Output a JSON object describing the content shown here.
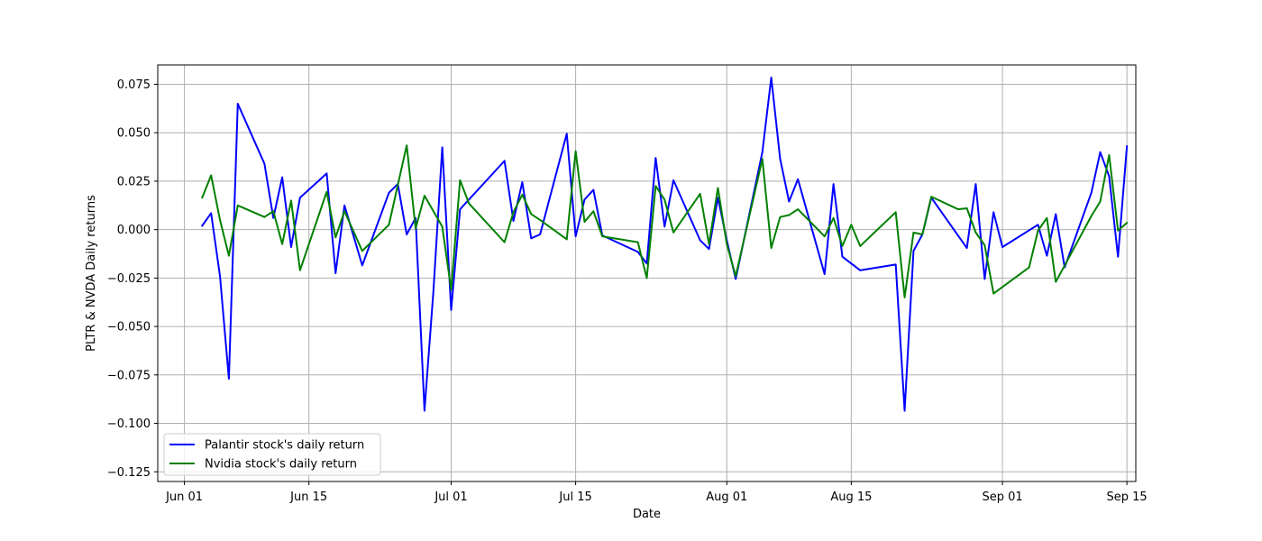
{
  "chart_data": {
    "type": "line",
    "title": "",
    "xlabel": "Date",
    "ylabel": "PLTR & NVDA Daily returns",
    "year": 2024,
    "xlim": [
      "2024-05-29",
      "2024-09-16"
    ],
    "ylim": [
      -0.13,
      0.085
    ],
    "x_ticks": [
      {
        "date": "2024-06-01",
        "label": "Jun 01"
      },
      {
        "date": "2024-06-15",
        "label": "Jun 15"
      },
      {
        "date": "2024-07-01",
        "label": "Jul 01"
      },
      {
        "date": "2024-07-15",
        "label": "Jul 15"
      },
      {
        "date": "2024-08-01",
        "label": "Aug 01"
      },
      {
        "date": "2024-08-15",
        "label": "Aug 15"
      },
      {
        "date": "2024-09-01",
        "label": "Sep 01"
      },
      {
        "date": "2024-09-15",
        "label": "Sep 15"
      }
    ],
    "y_ticks": [
      {
        "value": 0.075,
        "label": "0.075"
      },
      {
        "value": 0.05,
        "label": "0.050"
      },
      {
        "value": 0.025,
        "label": "0.025"
      },
      {
        "value": 0.0,
        "label": "0.000"
      },
      {
        "value": -0.025,
        "label": "−0.025"
      },
      {
        "value": -0.05,
        "label": "−0.050"
      },
      {
        "value": -0.075,
        "label": "−0.075"
      },
      {
        "value": -0.1,
        "label": "−0.100"
      },
      {
        "value": -0.125,
        "label": "−0.125"
      }
    ],
    "grid": true,
    "legend_position": "lower-left",
    "series": [
      {
        "name": "Palantir stock's daily return",
        "color": "#0000ff",
        "points": [
          [
            "2024-06-03",
            0.002
          ],
          [
            "2024-06-04",
            0.0085
          ],
          [
            "2024-06-05",
            -0.024
          ],
          [
            "2024-06-06",
            -0.077
          ],
          [
            "2024-06-07",
            0.065
          ],
          [
            "2024-06-10",
            0.034
          ],
          [
            "2024-06-11",
            0.006
          ],
          [
            "2024-06-12",
            0.027
          ],
          [
            "2024-06-13",
            -0.009
          ],
          [
            "2024-06-14",
            0.0165
          ],
          [
            "2024-06-17",
            0.029
          ],
          [
            "2024-06-18",
            -0.0225
          ],
          [
            "2024-06-19",
            0.0125
          ],
          [
            "2024-06-21",
            -0.0185
          ],
          [
            "2024-06-24",
            0.019
          ],
          [
            "2024-06-25",
            0.0235
          ],
          [
            "2024-06-26",
            -0.0025
          ],
          [
            "2024-06-27",
            0.006
          ],
          [
            "2024-06-28",
            -0.0935
          ],
          [
            "2024-06-29",
            -0.032
          ],
          [
            "2024-06-30",
            0.0425
          ],
          [
            "2024-07-01",
            -0.0415
          ],
          [
            "2024-07-02",
            0.0105
          ],
          [
            "2024-07-07",
            0.0355
          ],
          [
            "2024-07-08",
            0.0045
          ],
          [
            "2024-07-09",
            0.0245
          ],
          [
            "2024-07-10",
            -0.0045
          ],
          [
            "2024-07-11",
            -0.0025
          ],
          [
            "2024-07-14",
            0.0495
          ],
          [
            "2024-07-15",
            -0.0035
          ],
          [
            "2024-07-16",
            0.0155
          ],
          [
            "2024-07-17",
            0.0205
          ],
          [
            "2024-07-18",
            -0.003
          ],
          [
            "2024-07-22",
            -0.0115
          ],
          [
            "2024-07-23",
            -0.0175
          ],
          [
            "2024-07-24",
            0.037
          ],
          [
            "2024-07-25",
            0.0015
          ],
          [
            "2024-07-26",
            0.0255
          ],
          [
            "2024-07-29",
            -0.0055
          ],
          [
            "2024-07-30",
            -0.01
          ],
          [
            "2024-07-31",
            0.0165
          ],
          [
            "2024-08-01",
            -0.0055
          ],
          [
            "2024-08-02",
            -0.0255
          ],
          [
            "2024-08-05",
            0.04
          ],
          [
            "2024-08-06",
            0.0785
          ],
          [
            "2024-08-07",
            0.0365
          ],
          [
            "2024-08-08",
            0.0145
          ],
          [
            "2024-08-09",
            0.026
          ],
          [
            "2024-08-12",
            -0.023
          ],
          [
            "2024-08-13",
            0.0235
          ],
          [
            "2024-08-14",
            -0.014
          ],
          [
            "2024-08-16",
            -0.021
          ],
          [
            "2024-08-20",
            -0.018
          ],
          [
            "2024-08-21",
            -0.0935
          ],
          [
            "2024-08-22",
            -0.011
          ],
          [
            "2024-08-23",
            -0.0025
          ],
          [
            "2024-08-24",
            0.0165
          ],
          [
            "2024-08-28",
            -0.0095
          ],
          [
            "2024-08-29",
            0.0235
          ],
          [
            "2024-08-30",
            -0.0255
          ],
          [
            "2024-08-31",
            0.009
          ],
          [
            "2024-09-01",
            -0.009
          ],
          [
            "2024-09-05",
            0.0025
          ],
          [
            "2024-09-06",
            -0.0135
          ],
          [
            "2024-09-07",
            0.008
          ],
          [
            "2024-09-08",
            -0.0195
          ],
          [
            "2024-09-11",
            0.019
          ],
          [
            "2024-09-12",
            0.04
          ],
          [
            "2024-09-13",
            0.0275
          ],
          [
            "2024-09-14",
            -0.014
          ],
          [
            "2024-09-15",
            0.043
          ]
        ]
      },
      {
        "name": "Nvidia stock's daily return",
        "color": "#008000",
        "points": [
          [
            "2024-06-03",
            0.0165
          ],
          [
            "2024-06-04",
            0.028
          ],
          [
            "2024-06-05",
            0.005
          ],
          [
            "2024-06-06",
            -0.0135
          ],
          [
            "2024-06-07",
            0.0125
          ],
          [
            "2024-06-10",
            0.0065
          ],
          [
            "2024-06-11",
            0.0095
          ],
          [
            "2024-06-12",
            -0.0075
          ],
          [
            "2024-06-13",
            0.015
          ],
          [
            "2024-06-14",
            -0.021
          ],
          [
            "2024-06-17",
            0.0195
          ],
          [
            "2024-06-18",
            -0.004
          ],
          [
            "2024-06-19",
            0.0095
          ],
          [
            "2024-06-21",
            -0.011
          ],
          [
            "2024-06-24",
            0.0025
          ],
          [
            "2024-06-26",
            0.0435
          ],
          [
            "2024-06-27",
            0.0005
          ],
          [
            "2024-06-28",
            0.0175
          ],
          [
            "2024-06-30",
            0.0015
          ],
          [
            "2024-07-01",
            -0.031
          ],
          [
            "2024-07-02",
            0.0255
          ],
          [
            "2024-07-03",
            0.0135
          ],
          [
            "2024-07-07",
            -0.0065
          ],
          [
            "2024-07-08",
            0.009
          ],
          [
            "2024-07-09",
            0.018
          ],
          [
            "2024-07-10",
            0.008
          ],
          [
            "2024-07-11",
            0.005
          ],
          [
            "2024-07-14",
            -0.005
          ],
          [
            "2024-07-15",
            0.0405
          ],
          [
            "2024-07-16",
            0.004
          ],
          [
            "2024-07-17",
            0.0095
          ],
          [
            "2024-07-18",
            -0.0035
          ],
          [
            "2024-07-22",
            -0.0065
          ],
          [
            "2024-07-23",
            -0.025
          ],
          [
            "2024-07-24",
            0.0225
          ],
          [
            "2024-07-25",
            0.0155
          ],
          [
            "2024-07-26",
            -0.0015
          ],
          [
            "2024-07-29",
            0.0185
          ],
          [
            "2024-07-30",
            -0.0075
          ],
          [
            "2024-07-31",
            0.0215
          ],
          [
            "2024-08-01",
            -0.0075
          ],
          [
            "2024-08-02",
            -0.024
          ],
          [
            "2024-08-05",
            0.0365
          ],
          [
            "2024-08-06",
            -0.0095
          ],
          [
            "2024-08-07",
            0.0065
          ],
          [
            "2024-08-08",
            0.0075
          ],
          [
            "2024-08-09",
            0.0105
          ],
          [
            "2024-08-12",
            -0.0035
          ],
          [
            "2024-08-13",
            0.006
          ],
          [
            "2024-08-14",
            -0.0085
          ],
          [
            "2024-08-15",
            0.0025
          ],
          [
            "2024-08-16",
            -0.0085
          ],
          [
            "2024-08-20",
            0.009
          ],
          [
            "2024-08-21",
            -0.035
          ],
          [
            "2024-08-22",
            -0.0015
          ],
          [
            "2024-08-23",
            -0.0025
          ],
          [
            "2024-08-24",
            0.017
          ],
          [
            "2024-08-27",
            0.0105
          ],
          [
            "2024-08-28",
            0.011
          ],
          [
            "2024-08-29",
            -0.0015
          ],
          [
            "2024-08-30",
            -0.008
          ],
          [
            "2024-08-31",
            -0.033
          ],
          [
            "2024-09-04",
            -0.0195
          ],
          [
            "2024-09-05",
            -0.0005
          ],
          [
            "2024-09-06",
            0.006
          ],
          [
            "2024-09-07",
            -0.027
          ],
          [
            "2024-09-11",
            0.007
          ],
          [
            "2024-09-12",
            0.0145
          ],
          [
            "2024-09-13",
            0.0385
          ],
          [
            "2024-09-14",
            -0.0005
          ],
          [
            "2024-09-15",
            0.0035
          ]
        ]
      }
    ]
  }
}
